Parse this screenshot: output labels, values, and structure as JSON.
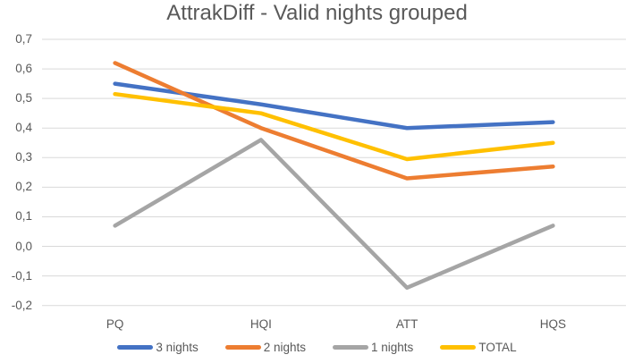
{
  "chart_data": {
    "type": "line",
    "title": "AttrakDiff - Valid nights grouped",
    "categories": [
      "PQ",
      "HQI",
      "ATT",
      "HQS"
    ],
    "series": [
      {
        "name": "3 nights",
        "color": "#4472C4",
        "values": [
          0.55,
          0.48,
          0.4,
          0.42
        ]
      },
      {
        "name": "2 nights",
        "color": "#ED7D31",
        "values": [
          0.62,
          0.4,
          0.23,
          0.27
        ]
      },
      {
        "name": "1 nights",
        "color": "#A5A5A5",
        "values": [
          0.07,
          0.36,
          -0.14,
          0.07
        ]
      },
      {
        "name": "TOTAL",
        "color": "#FFC000",
        "values": [
          0.515,
          0.45,
          0.295,
          0.35
        ]
      }
    ],
    "y_ticks": [
      {
        "value": 0.7,
        "label": "0,7"
      },
      {
        "value": 0.6,
        "label": "0,6"
      },
      {
        "value": 0.5,
        "label": "0,5"
      },
      {
        "value": 0.4,
        "label": "0,4"
      },
      {
        "value": 0.3,
        "label": "0,3"
      },
      {
        "value": 0.2,
        "label": "0,2"
      },
      {
        "value": 0.1,
        "label": "0,1"
      },
      {
        "value": 0.0,
        "label": "0,0"
      },
      {
        "value": -0.1,
        "label": "-0,1"
      },
      {
        "value": -0.2,
        "label": "-0,2"
      }
    ],
    "ylim": [
      -0.2,
      0.7
    ],
    "grid": true,
    "gridline_color": "#D9D9D9",
    "text_color": "#595959",
    "legend_position": "bottom",
    "line_width": 4.5
  }
}
